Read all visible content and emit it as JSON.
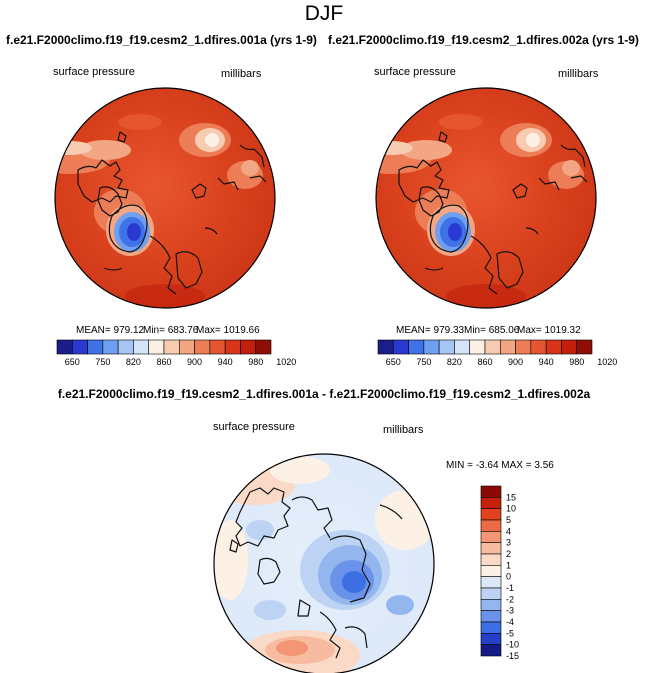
{
  "title": "DJF",
  "chart_data": [
    {
      "type": "heatmap",
      "projection": "polar-stereographic",
      "title": "f.e21.F2000climo.f19_f19.cesm2_1.dfires.001a (yrs 1-9)",
      "variable": "surface pressure",
      "units": "millibars",
      "stats": {
        "mean_label": "MEAN= 979.12",
        "min_label": "Min= 683.76",
        "max_label": "Max= 1019.66"
      },
      "mean": 979.12,
      "min": 683.76,
      "max": 1019.66,
      "colorbar_ticks": [
        "650",
        "750",
        "820",
        "860",
        "900",
        "940",
        "980",
        "1020"
      ],
      "colorbar_colors": [
        "#1b1d8a",
        "#2a3ad0",
        "#3e72e6",
        "#6f9ff0",
        "#a6c4f4",
        "#d4e5fa",
        "#fdf0e4",
        "#f8ccb0",
        "#f3a683",
        "#ec7d56",
        "#e5552f",
        "#d83418",
        "#c21f0c",
        "#8f0e05"
      ]
    },
    {
      "type": "heatmap",
      "projection": "polar-stereographic",
      "title": "f.e21.F2000climo.f19_f19.cesm2_1.dfires.002a (yrs 1-9)",
      "variable": "surface pressure",
      "units": "millibars",
      "stats": {
        "mean_label": "MEAN= 979.33",
        "min_label": "Min= 685.06",
        "max_label": "Max= 1019.32"
      },
      "mean": 979.33,
      "min": 685.06,
      "max": 1019.32,
      "colorbar_ticks": [
        "650",
        "750",
        "820",
        "860",
        "900",
        "940",
        "980",
        "1020"
      ],
      "colorbar_colors": [
        "#1b1d8a",
        "#2a3ad0",
        "#3e72e6",
        "#6f9ff0",
        "#a6c4f4",
        "#d4e5fa",
        "#fdf0e4",
        "#f8ccb0",
        "#f3a683",
        "#ec7d56",
        "#e5552f",
        "#d83418",
        "#c21f0c",
        "#8f0e05"
      ]
    },
    {
      "type": "heatmap",
      "projection": "polar-stereographic",
      "title": "f.e21.F2000climo.f19_f19.cesm2_1.dfires.001a - f.e21.F2000climo.f19_f19.cesm2_1.dfires.002a",
      "variable": "surface pressure",
      "units": "millibars",
      "stats_label": "MIN =  -3.64 MAX =   3.56",
      "min": -3.64,
      "max": 3.56,
      "colorbar_ticks": [
        "15",
        "10",
        "5",
        "4",
        "3",
        "2",
        "1",
        "0",
        "-1",
        "-2",
        "-3",
        "-4",
        "-5",
        "-10",
        "-15"
      ],
      "colorbar_colors": [
        "#8b0a05",
        "#c5200c",
        "#e2431f",
        "#ec6a45",
        "#f39673",
        "#f7bca0",
        "#fbd9c7",
        "#fdf1e6",
        "#dce8f7",
        "#bcd3f3",
        "#93b6ef",
        "#6a92ea",
        "#3e6ee3",
        "#2340c8",
        "#151a86"
      ]
    }
  ]
}
